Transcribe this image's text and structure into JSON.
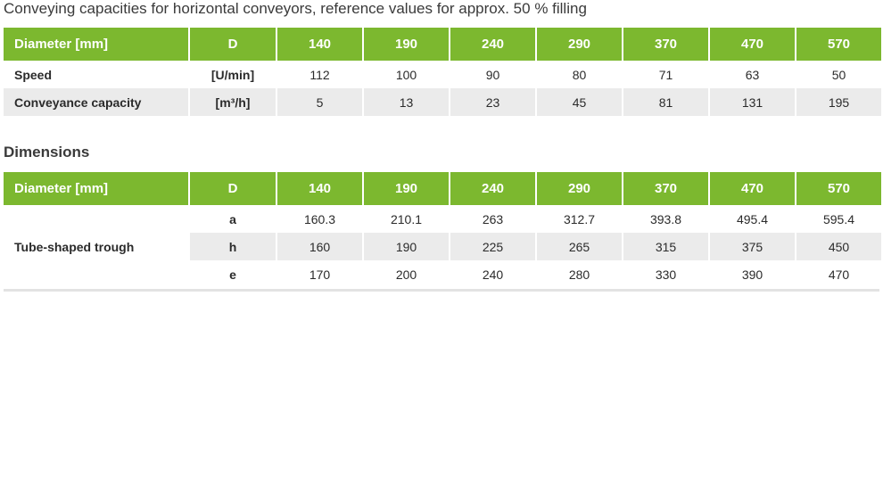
{
  "title": "Conveying capacities for horizontal conveyors, reference values for approx. 50 % filling",
  "table1": {
    "header": [
      "Diameter [mm]",
      "D",
      "140",
      "190",
      "240",
      "290",
      "370",
      "470",
      "570"
    ],
    "rows": [
      {
        "label": "Speed",
        "unit": "[U/min]",
        "values": [
          "112",
          "100",
          "90",
          "80",
          "71",
          "63",
          "50"
        ]
      },
      {
        "label": "Conveyance capacity",
        "unit": "[m³/h]",
        "values": [
          "5",
          "13",
          "23",
          "45",
          "81",
          "131",
          "195"
        ]
      }
    ]
  },
  "dimensions_title": "Dimensions",
  "table2": {
    "header": [
      "Diameter [mm]",
      "D",
      "140",
      "190",
      "240",
      "290",
      "370",
      "470",
      "570"
    ],
    "group_label": "Tube-shaped trough",
    "rows": [
      {
        "unit": "a",
        "values": [
          "160.3",
          "210.1",
          "263",
          "312.7",
          "393.8",
          "495.4",
          "595.4"
        ]
      },
      {
        "unit": "h",
        "values": [
          "160",
          "190",
          "225",
          "265",
          "315",
          "375",
          "450"
        ]
      },
      {
        "unit": "e",
        "values": [
          "170",
          "200",
          "240",
          "280",
          "330",
          "390",
          "470"
        ]
      }
    ]
  },
  "colors": {
    "header_green": "#7cb82f",
    "row_shade": "#ebebeb"
  }
}
